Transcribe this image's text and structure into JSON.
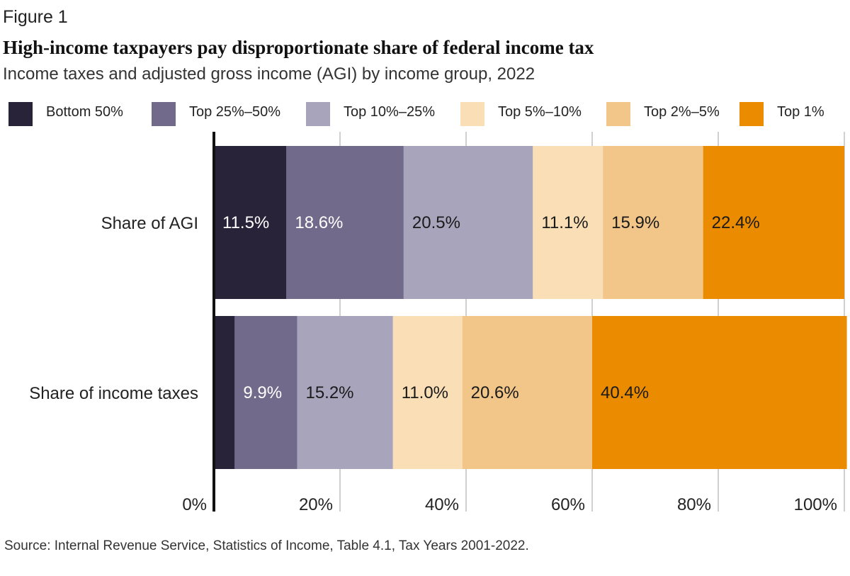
{
  "figure_label": "Figure 1",
  "chart_data": {
    "type": "bar",
    "orientation": "horizontal",
    "stacked": true,
    "title": "High-income taxpayers pay disproportionate share of federal income tax",
    "subtitle": "Income taxes and adjusted gross income (AGI) by income group, 2022",
    "categories": [
      "Share of AGI",
      "Share of income taxes"
    ],
    "series": [
      {
        "name": "Bottom 50%",
        "color": "#29233a",
        "label_color": "#ffffff",
        "values": [
          11.5,
          3.3
        ],
        "labels": [
          "11.5%",
          ""
        ]
      },
      {
        "name": "Top 25%–50%",
        "color": "#716a8b",
        "label_color": "#ffffff",
        "values": [
          18.6,
          9.9
        ],
        "labels": [
          "18.6%",
          "9.9%"
        ]
      },
      {
        "name": "Top 10%–25%",
        "color": "#a8a4bc",
        "label_color": "#1a1a1a",
        "values": [
          20.5,
          15.2
        ],
        "labels": [
          "20.5%",
          "15.2%"
        ]
      },
      {
        "name": "Top 5%–10%",
        "color": "#fadfb6",
        "label_color": "#1a1a1a",
        "values": [
          11.1,
          11.0
        ],
        "labels": [
          "11.1%",
          "11.0%"
        ]
      },
      {
        "name": "Top 2%–5%",
        "color": "#f2c589",
        "label_color": "#1a1a1a",
        "values": [
          15.9,
          20.6
        ],
        "labels": [
          "15.9%",
          "20.6%"
        ]
      },
      {
        "name": "Top 1%",
        "color": "#eb8b00",
        "label_color": "#1a1a1a",
        "values": [
          22.4,
          40.4
        ],
        "labels": [
          "22.4%",
          "40.4%"
        ]
      }
    ],
    "xlim": [
      0,
      100
    ],
    "x_ticks": [
      0,
      20,
      40,
      60,
      80,
      100
    ],
    "x_tick_labels": [
      "0%",
      "20%",
      "40%",
      "60%",
      "80%",
      "100%"
    ],
    "grid": true,
    "legend_position": "top"
  },
  "source": "Source: Internal Revenue Service, Statistics of Income, Table 4.1, Tax Years 2001-2022."
}
